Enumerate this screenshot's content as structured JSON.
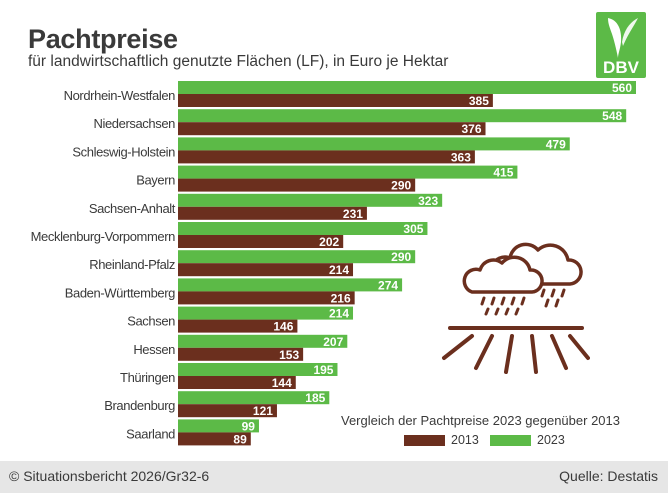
{
  "title": "Pachtpreise",
  "subtitle": "für landwirtschaftlich genutzte Flächen (LF), in Euro je Hektar",
  "logo_text": "DBV",
  "legend": {
    "title": "Vergleich der Pachtpreise 2023 gegenüber 2013",
    "items": [
      {
        "label": "2013",
        "color": "#6b2f1e"
      },
      {
        "label": "2023",
        "color": "#5cba47"
      }
    ]
  },
  "footer": {
    "copyright": "© Situationsbericht 2026/Gr32-6",
    "source": "Quelle: Destatis"
  },
  "colors": {
    "brown": "#6b2f1e",
    "green": "#5cba47",
    "logo_green": "#5cba47"
  },
  "chart_data": {
    "type": "bar",
    "orientation": "horizontal",
    "categories": [
      "Nordrhein-Westfalen",
      "Niedersachsen",
      "Schleswig-Holstein",
      "Bayern",
      "Sachsen-Anhalt",
      "Mecklenburg-Vorpommern",
      "Rheinland-Pfalz",
      "Baden-Württemberg",
      "Sachsen",
      "Hessen",
      "Thüringen",
      "Brandenburg",
      "Saarland"
    ],
    "series": [
      {
        "name": "2023",
        "values": [
          560,
          548,
          479,
          415,
          323,
          305,
          290,
          274,
          214,
          207,
          195,
          185,
          99
        ]
      },
      {
        "name": "2013",
        "values": [
          385,
          376,
          363,
          290,
          231,
          202,
          214,
          216,
          146,
          153,
          144,
          121,
          89
        ]
      }
    ],
    "xlim": [
      0,
      560
    ],
    "grid": false,
    "legend_position": "bottom-right"
  }
}
